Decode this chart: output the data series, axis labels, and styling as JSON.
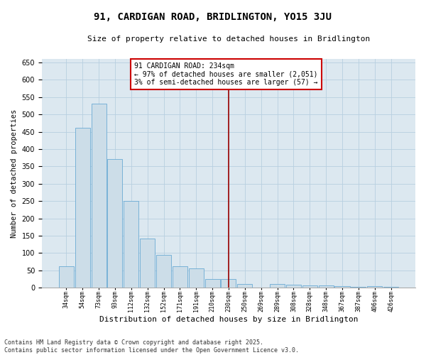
{
  "title": "91, CARDIGAN ROAD, BRIDLINGTON, YO15 3JU",
  "subtitle": "Size of property relative to detached houses in Bridlington",
  "xlabel": "Distribution of detached houses by size in Bridlington",
  "ylabel": "Number of detached properties",
  "categories": [
    "34sqm",
    "54sqm",
    "73sqm",
    "93sqm",
    "112sqm",
    "132sqm",
    "152sqm",
    "171sqm",
    "191sqm",
    "210sqm",
    "230sqm",
    "250sqm",
    "269sqm",
    "289sqm",
    "308sqm",
    "328sqm",
    "348sqm",
    "367sqm",
    "387sqm",
    "406sqm",
    "426sqm"
  ],
  "values": [
    62,
    462,
    530,
    372,
    250,
    142,
    95,
    63,
    55,
    26,
    26,
    10,
    0,
    11,
    8,
    7,
    7,
    4,
    3,
    5,
    3
  ],
  "bar_color": "#ccdde8",
  "bar_edge_color": "#6aaad4",
  "grid_color": "#b8cfe0",
  "vline_index": 10,
  "vline_color": "#990000",
  "annotation_text_line1": "91 CARDIGAN ROAD: 234sqm",
  "annotation_text_line2": "← 97% of detached houses are smaller (2,051)",
  "annotation_text_line3": "3% of semi-detached houses are larger (57) →",
  "annotation_box_color": "#ffffff",
  "annotation_box_edge": "#cc0000",
  "ylim": [
    0,
    660
  ],
  "yticks": [
    0,
    50,
    100,
    150,
    200,
    250,
    300,
    350,
    400,
    450,
    500,
    550,
    600,
    650
  ],
  "footer_line1": "Contains HM Land Registry data © Crown copyright and database right 2025.",
  "footer_line2": "Contains public sector information licensed under the Open Government Licence v3.0.",
  "bg_color": "#dce8f0",
  "fig_bg_color": "#ffffff",
  "title_fontsize": 10,
  "subtitle_fontsize": 8,
  "ylabel_fontsize": 7.5,
  "xlabel_fontsize": 8,
  "ytick_fontsize": 7,
  "xtick_fontsize": 6,
  "annotation_fontsize": 7,
  "footer_fontsize": 6
}
